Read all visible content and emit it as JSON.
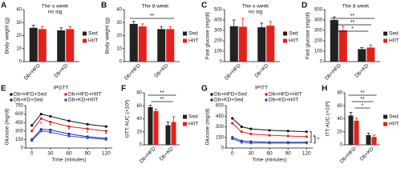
{
  "chart_data": [
    {
      "panel": "A",
      "type": "bar",
      "title": "The o week",
      "subtitle": "no sig",
      "ylabel": "Body weight (g)",
      "categories": [
        "Db+HFD",
        "Db+KD"
      ],
      "series": [
        {
          "name": "Sed",
          "color": "#222222",
          "values": [
            26,
            24
          ],
          "errors": [
            2,
            2
          ]
        },
        {
          "name": "HIIT",
          "color": "#e3211c",
          "values": [
            25,
            25
          ],
          "errors": [
            2,
            2
          ]
        }
      ],
      "ylim": [
        0,
        40
      ],
      "yticks": [
        0,
        10,
        20,
        30,
        40
      ]
    },
    {
      "panel": "B",
      "type": "bar",
      "title": "The 8 week",
      "ylabel": "Body weight (g)",
      "categories": [
        "Db+HFD",
        "Db+KD"
      ],
      "series": [
        {
          "name": "Sed",
          "color": "#222222",
          "values": [
            29,
            25
          ],
          "errors": [
            2,
            2
          ]
        },
        {
          "name": "HIIT",
          "color": "#e3211c",
          "values": [
            27,
            25
          ],
          "errors": [
            2,
            2
          ]
        }
      ],
      "ylim": [
        0,
        40
      ],
      "yticks": [
        0,
        10,
        20,
        30,
        40
      ],
      "annotations": [
        "**"
      ]
    },
    {
      "panel": "C",
      "type": "bar",
      "title": "The o week",
      "subtitle": "no sig",
      "ylabel": "Fast glucose (mg/dl)",
      "categories": [
        "Db+HFD",
        "Db+KD"
      ],
      "series": [
        {
          "name": "Sed",
          "color": "#222222",
          "values": [
            340,
            330
          ],
          "errors": [
            60,
            40
          ]
        },
        {
          "name": "HIIT",
          "color": "#e3211c",
          "values": [
            335,
            345
          ],
          "errors": [
            80,
            40
          ]
        }
      ],
      "ylim": [
        0,
        500
      ],
      "yticks": [
        0,
        100,
        200,
        300,
        400,
        500
      ]
    },
    {
      "panel": "D",
      "type": "bar",
      "title": "The 8 week",
      "ylabel": "Fast glucose (mg/dl)",
      "categories": [
        "Db+HFD",
        "Db+KD"
      ],
      "series": [
        {
          "name": "Sed",
          "color": "#222222",
          "values": [
            400,
            120
          ],
          "errors": [
            30,
            15
          ]
        },
        {
          "name": "HIIT",
          "color": "#e3211c",
          "values": [
            300,
            135
          ],
          "errors": [
            40,
            25
          ]
        }
      ],
      "ylim": [
        0,
        500
      ],
      "yticks": [
        0,
        100,
        200,
        300,
        400,
        500
      ],
      "annotations": [
        "**",
        "**",
        "*"
      ]
    },
    {
      "panel": "E",
      "type": "line",
      "title": "IPGTT",
      "ylabel": "Glucose (mg/dl)",
      "xlabel": "Time (minutes)",
      "x": [
        0,
        15,
        30,
        60,
        90,
        120
      ],
      "xlim": [
        -10,
        130
      ],
      "xticks": [
        0,
        30,
        60,
        90,
        120
      ],
      "series": [
        {
          "name": "Db+HFD+Sed",
          "color": "#111111",
          "values": [
            400,
            600,
            560,
            480,
            420,
            380
          ]
        },
        {
          "name": "Db+HFD+HIIT",
          "color": "#e3211c",
          "values": [
            300,
            520,
            460,
            380,
            340,
            300
          ]
        },
        {
          "name": "Db+KD+Sed",
          "color": "#1c2f86",
          "values": [
            150,
            330,
            320,
            250,
            200,
            170
          ]
        },
        {
          "name": "Db+KD+HIIT",
          "color": "#2d55e0",
          "values": [
            130,
            300,
            280,
            210,
            180,
            150
          ]
        }
      ],
      "ylim": [
        0,
        750
      ],
      "yticks": [
        0,
        150,
        300,
        450,
        600,
        750
      ],
      "annotations": [
        "*",
        "*",
        "*",
        "*",
        "*"
      ]
    },
    {
      "panel": "F",
      "type": "bar",
      "ylabel": "GTT AUC (×10³)",
      "categories": [
        "Db+HFD",
        "Db+KD"
      ],
      "series": [
        {
          "name": "Sed",
          "color": "#222222",
          "values": [
            58,
            30
          ],
          "errors": [
            3,
            5
          ]
        },
        {
          "name": "HIIT",
          "color": "#e3211c",
          "values": [
            52,
            35
          ],
          "errors": [
            3,
            8
          ]
        }
      ],
      "ylim": [
        0,
        80
      ],
      "yticks": [
        0,
        20,
        40,
        60,
        80
      ],
      "annotations": [
        "**",
        "**"
      ]
    },
    {
      "panel": "G",
      "type": "line",
      "title": "IPITT",
      "ylabel": "Glucose (mg/dl)",
      "xlabel": "Time (minutes)",
      "x": [
        0,
        15,
        30,
        60,
        90,
        120
      ],
      "xlim": [
        -10,
        130
      ],
      "xticks": [
        0,
        30,
        60,
        90,
        120
      ],
      "series": [
        {
          "name": "Db+HFD+Sed",
          "color": "#111111",
          "values": [
            420,
            300,
            270,
            250,
            240,
            230
          ]
        },
        {
          "name": "Db+HFD+HIIT",
          "color": "#e3211c",
          "values": [
            350,
            230,
            200,
            180,
            170,
            160
          ]
        },
        {
          "name": "Db+KD+Sed",
          "color": "#1c2f86",
          "values": [
            150,
            100,
            90,
            80,
            80,
            80
          ]
        },
        {
          "name": "Db+KD+HIIT",
          "color": "#2d55e0",
          "values": [
            130,
            80,
            70,
            70,
            70,
            70
          ]
        }
      ],
      "ylim": [
        0,
        600
      ],
      "yticks": [
        0,
        150,
        300,
        450,
        600
      ],
      "annotations": [
        "*",
        "*"
      ]
    },
    {
      "panel": "H",
      "type": "bar",
      "ylabel": "ITT AUC (×10³)",
      "categories": [
        "Db+HFD",
        "Db+KD"
      ],
      "series": [
        {
          "name": "Sed",
          "color": "#222222",
          "values": [
            45,
            15
          ],
          "errors": [
            5,
            3
          ]
        },
        {
          "name": "HIIT",
          "color": "#e3211c",
          "values": [
            37,
            12
          ],
          "errors": [
            4,
            3
          ]
        }
      ],
      "ylim": [
        0,
        80
      ],
      "yticks": [
        0,
        20,
        40,
        60,
        80
      ],
      "annotations": [
        "**",
        "**",
        "*"
      ]
    }
  ]
}
